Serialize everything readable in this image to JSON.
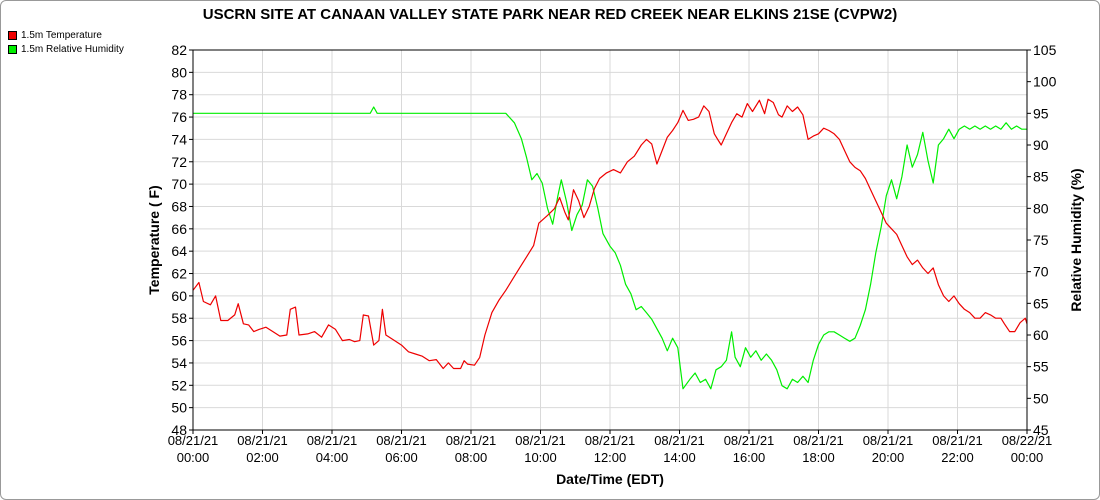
{
  "chart_data": {
    "type": "line",
    "title": "USCRN SITE AT CANAAN VALLEY STATE PARK NEAR RED CREEK NEAR ELKINS 21SE (CVPW2)",
    "xlabel": "Date/Time (EDT)",
    "ylabel_left": "Temperature ( F)",
    "ylabel_right": "Relative Humidity (%)",
    "xlim_hours": [
      0,
      24
    ],
    "ylim_left": [
      48,
      82
    ],
    "ylim_right": [
      45,
      105
    ],
    "yticks_left": [
      48,
      50,
      52,
      54,
      56,
      58,
      60,
      62,
      64,
      66,
      68,
      70,
      72,
      74,
      76,
      78,
      80,
      82
    ],
    "yticks_right": [
      45,
      50,
      55,
      60,
      65,
      70,
      75,
      80,
      85,
      90,
      95,
      100,
      105
    ],
    "xticks": [
      {
        "hour": 0,
        "date": "08/21/21",
        "time": "00:00"
      },
      {
        "hour": 2,
        "date": "08/21/21",
        "time": "02:00"
      },
      {
        "hour": 4,
        "date": "08/21/21",
        "time": "04:00"
      },
      {
        "hour": 6,
        "date": "08/21/21",
        "time": "06:00"
      },
      {
        "hour": 8,
        "date": "08/21/21",
        "time": "08:00"
      },
      {
        "hour": 10,
        "date": "08/21/21",
        "time": "10:00"
      },
      {
        "hour": 12,
        "date": "08/21/21",
        "time": "12:00"
      },
      {
        "hour": 14,
        "date": "08/21/21",
        "time": "14:00"
      },
      {
        "hour": 16,
        "date": "08/21/21",
        "time": "16:00"
      },
      {
        "hour": 18,
        "date": "08/21/21",
        "time": "18:00"
      },
      {
        "hour": 20,
        "date": "08/21/21",
        "time": "20:00"
      },
      {
        "hour": 22,
        "date": "08/21/21",
        "time": "22:00"
      },
      {
        "hour": 24,
        "date": "08/22/21",
        "time": "00:00"
      }
    ],
    "grid": true,
    "legend_position": "top-left",
    "series": [
      {
        "name": "1.5m Temperature",
        "axis": "left",
        "color": "#ee0000",
        "points": [
          [
            0.0,
            60.5
          ],
          [
            0.17,
            61.2
          ],
          [
            0.3,
            59.5
          ],
          [
            0.5,
            59.2
          ],
          [
            0.65,
            60.0
          ],
          [
            0.8,
            57.8
          ],
          [
            1.0,
            57.8
          ],
          [
            1.2,
            58.3
          ],
          [
            1.3,
            59.3
          ],
          [
            1.45,
            57.5
          ],
          [
            1.6,
            57.4
          ],
          [
            1.75,
            56.8
          ],
          [
            1.9,
            57.0
          ],
          [
            2.1,
            57.2
          ],
          [
            2.3,
            56.8
          ],
          [
            2.5,
            56.4
          ],
          [
            2.7,
            56.5
          ],
          [
            2.8,
            58.8
          ],
          [
            2.95,
            59.0
          ],
          [
            3.05,
            56.5
          ],
          [
            3.3,
            56.6
          ],
          [
            3.5,
            56.8
          ],
          [
            3.7,
            56.3
          ],
          [
            3.9,
            57.4
          ],
          [
            4.1,
            57.0
          ],
          [
            4.3,
            56.0
          ],
          [
            4.5,
            56.1
          ],
          [
            4.65,
            55.9
          ],
          [
            4.8,
            56.0
          ],
          [
            4.9,
            58.3
          ],
          [
            5.05,
            58.2
          ],
          [
            5.2,
            55.6
          ],
          [
            5.35,
            56.0
          ],
          [
            5.45,
            58.8
          ],
          [
            5.55,
            56.5
          ],
          [
            5.8,
            56.0
          ],
          [
            6.0,
            55.6
          ],
          [
            6.2,
            55.0
          ],
          [
            6.4,
            54.8
          ],
          [
            6.6,
            54.6
          ],
          [
            6.8,
            54.2
          ],
          [
            7.0,
            54.3
          ],
          [
            7.2,
            53.5
          ],
          [
            7.35,
            54.0
          ],
          [
            7.5,
            53.5
          ],
          [
            7.7,
            53.5
          ],
          [
            7.8,
            54.2
          ],
          [
            7.9,
            53.9
          ],
          [
            8.1,
            53.8
          ],
          [
            8.25,
            54.5
          ],
          [
            8.4,
            56.5
          ],
          [
            8.6,
            58.5
          ],
          [
            8.8,
            59.6
          ],
          [
            9.0,
            60.5
          ],
          [
            9.2,
            61.5
          ],
          [
            9.4,
            62.5
          ],
          [
            9.6,
            63.5
          ],
          [
            9.8,
            64.5
          ],
          [
            9.95,
            66.5
          ],
          [
            10.2,
            67.2
          ],
          [
            10.4,
            67.8
          ],
          [
            10.55,
            68.8
          ],
          [
            10.7,
            67.5
          ],
          [
            10.8,
            66.8
          ],
          [
            10.95,
            69.5
          ],
          [
            11.1,
            68.5
          ],
          [
            11.25,
            67.0
          ],
          [
            11.4,
            68.0
          ],
          [
            11.55,
            69.6
          ],
          [
            11.7,
            70.5
          ],
          [
            11.9,
            71.0
          ],
          [
            12.1,
            71.3
          ],
          [
            12.3,
            71.0
          ],
          [
            12.5,
            72.0
          ],
          [
            12.7,
            72.5
          ],
          [
            12.9,
            73.5
          ],
          [
            13.05,
            74.0
          ],
          [
            13.2,
            73.6
          ],
          [
            13.35,
            71.8
          ],
          [
            13.5,
            73.0
          ],
          [
            13.65,
            74.2
          ],
          [
            13.8,
            74.8
          ],
          [
            13.95,
            75.5
          ],
          [
            14.1,
            76.6
          ],
          [
            14.25,
            75.7
          ],
          [
            14.4,
            75.8
          ],
          [
            14.55,
            76.0
          ],
          [
            14.7,
            77.0
          ],
          [
            14.85,
            76.5
          ],
          [
            15.0,
            74.5
          ],
          [
            15.1,
            74.0
          ],
          [
            15.2,
            73.5
          ],
          [
            15.35,
            74.5
          ],
          [
            15.5,
            75.5
          ],
          [
            15.65,
            76.3
          ],
          [
            15.8,
            76.0
          ],
          [
            15.95,
            77.2
          ],
          [
            16.1,
            76.5
          ],
          [
            16.3,
            77.5
          ],
          [
            16.45,
            76.3
          ],
          [
            16.55,
            77.6
          ],
          [
            16.7,
            77.3
          ],
          [
            16.85,
            76.2
          ],
          [
            16.95,
            76.0
          ],
          [
            17.1,
            77.0
          ],
          [
            17.25,
            76.5
          ],
          [
            17.4,
            76.9
          ],
          [
            17.55,
            76.2
          ],
          [
            17.7,
            74.0
          ],
          [
            17.85,
            74.3
          ],
          [
            18.0,
            74.5
          ],
          [
            18.15,
            75.0
          ],
          [
            18.3,
            74.8
          ],
          [
            18.45,
            74.5
          ],
          [
            18.6,
            74.0
          ],
          [
            18.75,
            73.0
          ],
          [
            18.9,
            72.0
          ],
          [
            19.05,
            71.5
          ],
          [
            19.2,
            71.2
          ],
          [
            19.35,
            70.5
          ],
          [
            19.5,
            69.5
          ],
          [
            19.65,
            68.5
          ],
          [
            19.8,
            67.5
          ],
          [
            19.95,
            66.5
          ],
          [
            20.1,
            66.0
          ],
          [
            20.25,
            65.5
          ],
          [
            20.4,
            64.5
          ],
          [
            20.55,
            63.5
          ],
          [
            20.7,
            62.8
          ],
          [
            20.85,
            63.2
          ],
          [
            21.0,
            62.5
          ],
          [
            21.15,
            62.0
          ],
          [
            21.3,
            62.5
          ],
          [
            21.45,
            61.0
          ],
          [
            21.6,
            60.0
          ],
          [
            21.75,
            59.5
          ],
          [
            21.9,
            60.0
          ],
          [
            22.05,
            59.3
          ],
          [
            22.2,
            58.8
          ],
          [
            22.35,
            58.5
          ],
          [
            22.5,
            58.0
          ],
          [
            22.65,
            58.0
          ],
          [
            22.8,
            58.5
          ],
          [
            22.95,
            58.3
          ],
          [
            23.1,
            58.0
          ],
          [
            23.25,
            58.0
          ],
          [
            23.35,
            57.5
          ],
          [
            23.5,
            56.8
          ],
          [
            23.65,
            56.8
          ],
          [
            23.8,
            57.6
          ],
          [
            23.95,
            58.0
          ],
          [
            24.0,
            57.5
          ]
        ]
      },
      {
        "name": "1.5m Relative Humidity",
        "axis": "right",
        "color": "#00ee00",
        "points": [
          [
            0.0,
            95.0
          ],
          [
            5.1,
            95.0
          ],
          [
            5.2,
            96.0
          ],
          [
            5.3,
            95.0
          ],
          [
            9.0,
            95.0
          ],
          [
            9.25,
            93.5
          ],
          [
            9.45,
            91.0
          ],
          [
            9.6,
            88.0
          ],
          [
            9.75,
            84.5
          ],
          [
            9.9,
            85.5
          ],
          [
            10.05,
            84.0
          ],
          [
            10.2,
            80.0
          ],
          [
            10.35,
            77.5
          ],
          [
            10.5,
            82.0
          ],
          [
            10.6,
            84.5
          ],
          [
            10.75,
            81.0
          ],
          [
            10.9,
            76.5
          ],
          [
            11.05,
            79.0
          ],
          [
            11.2,
            80.5
          ],
          [
            11.35,
            84.5
          ],
          [
            11.5,
            83.5
          ],
          [
            11.65,
            80.0
          ],
          [
            11.8,
            76.0
          ],
          [
            12.0,
            74.0
          ],
          [
            12.15,
            73.0
          ],
          [
            12.3,
            71.0
          ],
          [
            12.45,
            68.0
          ],
          [
            12.6,
            66.5
          ],
          [
            12.75,
            64.0
          ],
          [
            12.9,
            64.5
          ],
          [
            13.05,
            63.5
          ],
          [
            13.2,
            62.5
          ],
          [
            13.35,
            61.0
          ],
          [
            13.5,
            59.5
          ],
          [
            13.65,
            57.5
          ],
          [
            13.8,
            59.5
          ],
          [
            13.95,
            58.0
          ],
          [
            14.1,
            51.5
          ],
          [
            14.3,
            53.0
          ],
          [
            14.45,
            54.0
          ],
          [
            14.6,
            52.5
          ],
          [
            14.75,
            53.0
          ],
          [
            14.9,
            51.5
          ],
          [
            15.05,
            54.5
          ],
          [
            15.2,
            55.0
          ],
          [
            15.35,
            56.0
          ],
          [
            15.5,
            60.5
          ],
          [
            15.6,
            56.5
          ],
          [
            15.75,
            55.0
          ],
          [
            15.9,
            58.0
          ],
          [
            16.05,
            56.5
          ],
          [
            16.2,
            57.5
          ],
          [
            16.35,
            56.0
          ],
          [
            16.5,
            57.0
          ],
          [
            16.65,
            56.0
          ],
          [
            16.8,
            54.5
          ],
          [
            16.95,
            52.0
          ],
          [
            17.1,
            51.5
          ],
          [
            17.25,
            53.0
          ],
          [
            17.4,
            52.5
          ],
          [
            17.55,
            53.5
          ],
          [
            17.7,
            52.5
          ],
          [
            17.85,
            56.0
          ],
          [
            18.0,
            58.5
          ],
          [
            18.15,
            60.0
          ],
          [
            18.3,
            60.5
          ],
          [
            18.45,
            60.5
          ],
          [
            18.6,
            60.0
          ],
          [
            18.75,
            59.5
          ],
          [
            18.9,
            59.0
          ],
          [
            19.05,
            59.5
          ],
          [
            19.2,
            61.5
          ],
          [
            19.35,
            64.0
          ],
          [
            19.5,
            68.0
          ],
          [
            19.65,
            73.0
          ],
          [
            19.8,
            77.0
          ],
          [
            19.95,
            82.0
          ],
          [
            20.1,
            84.5
          ],
          [
            20.25,
            81.5
          ],
          [
            20.4,
            85.0
          ],
          [
            20.55,
            90.0
          ],
          [
            20.7,
            86.5
          ],
          [
            20.85,
            88.5
          ],
          [
            21.0,
            92.0
          ],
          [
            21.15,
            87.5
          ],
          [
            21.3,
            84.0
          ],
          [
            21.45,
            90.0
          ],
          [
            21.6,
            91.0
          ],
          [
            21.75,
            92.5
          ],
          [
            21.9,
            91.0
          ],
          [
            22.05,
            92.5
          ],
          [
            22.2,
            93.0
          ],
          [
            22.35,
            92.5
          ],
          [
            22.5,
            93.0
          ],
          [
            22.65,
            92.5
          ],
          [
            22.8,
            93.0
          ],
          [
            22.95,
            92.5
          ],
          [
            23.1,
            93.0
          ],
          [
            23.25,
            92.5
          ],
          [
            23.4,
            93.5
          ],
          [
            23.55,
            92.5
          ],
          [
            23.7,
            93.0
          ],
          [
            23.85,
            92.5
          ],
          [
            24.0,
            92.5
          ]
        ]
      }
    ]
  }
}
